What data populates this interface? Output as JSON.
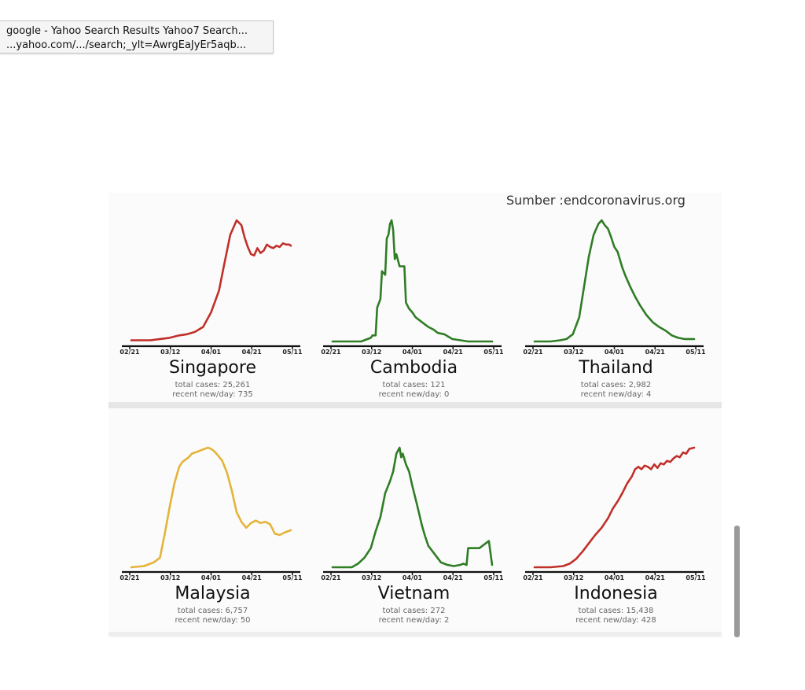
{
  "tooltip": {
    "title": "google - Yahoo Search Results Yahoo7 Search...",
    "url": "...yahoo.com/.../search;_ylt=AwrgEaJyEr5aqb..."
  },
  "source_label": "Sumber :endcoronavirus.org",
  "colors": {
    "red": "#c0302a",
    "green": "#2f7d25",
    "yellow": "#e4b43a"
  },
  "chart_data": [
    {
      "type": "line",
      "name": "Singapore",
      "color": "red",
      "xticks": [
        "02/21",
        "03/12",
        "04/01",
        "04/21",
        "05/11"
      ],
      "stats": [
        "total cases: 25,261",
        "recent new/day: 735"
      ],
      "x": [
        0,
        0.06,
        0.12,
        0.18,
        0.24,
        0.3,
        0.35,
        0.4,
        0.45,
        0.5,
        0.55,
        0.58,
        0.62,
        0.66,
        0.69,
        0.71,
        0.73,
        0.75,
        0.77,
        0.79,
        0.81,
        0.83,
        0.85,
        0.87,
        0.89,
        0.91,
        0.93,
        0.95,
        0.97,
        0.99,
        1.0
      ],
      "y": [
        0.01,
        0.01,
        0.01,
        0.02,
        0.03,
        0.05,
        0.06,
        0.08,
        0.12,
        0.24,
        0.42,
        0.62,
        0.88,
        1.0,
        0.96,
        0.86,
        0.78,
        0.72,
        0.71,
        0.77,
        0.73,
        0.75,
        0.8,
        0.78,
        0.77,
        0.79,
        0.78,
        0.81,
        0.8,
        0.8,
        0.79
      ],
      "ylim": [
        0,
        1
      ]
    },
    {
      "type": "line",
      "name": "Cambodia",
      "color": "green",
      "xticks": [
        "02/21",
        "03/12",
        "04/01",
        "04/21",
        "05/11"
      ],
      "stats": [
        "total cases: 121",
        "recent new/day: 0"
      ],
      "x": [
        0,
        0.1,
        0.18,
        0.24,
        0.25,
        0.27,
        0.28,
        0.3,
        0.31,
        0.33,
        0.34,
        0.35,
        0.36,
        0.37,
        0.38,
        0.39,
        0.4,
        0.42,
        0.43,
        0.45,
        0.46,
        0.48,
        0.5,
        0.52,
        0.55,
        0.58,
        0.6,
        0.63,
        0.66,
        0.7,
        0.75,
        0.85,
        1.0
      ],
      "y": [
        0,
        0,
        0,
        0.03,
        0.05,
        0.05,
        0.28,
        0.35,
        0.58,
        0.55,
        0.85,
        0.88,
        0.97,
        1.0,
        0.92,
        0.68,
        0.72,
        0.62,
        0.62,
        0.62,
        0.32,
        0.27,
        0.24,
        0.2,
        0.17,
        0.14,
        0.12,
        0.1,
        0.07,
        0.06,
        0.02,
        0,
        0
      ],
      "ylim": [
        0,
        1
      ]
    },
    {
      "type": "line",
      "name": "Thailand",
      "color": "green",
      "xticks": [
        "02/21",
        "03/12",
        "04/01",
        "04/21",
        "05/11"
      ],
      "stats": [
        "total cases: 2,982",
        "recent new/day: 4"
      ],
      "x": [
        0,
        0.1,
        0.16,
        0.2,
        0.24,
        0.28,
        0.31,
        0.34,
        0.37,
        0.4,
        0.42,
        0.44,
        0.46,
        0.48,
        0.5,
        0.52,
        0.55,
        0.57,
        0.6,
        0.63,
        0.66,
        0.7,
        0.74,
        0.78,
        0.82,
        0.86,
        0.9,
        0.94,
        0.97,
        1.0
      ],
      "y": [
        0,
        0,
        0.01,
        0.02,
        0.06,
        0.2,
        0.45,
        0.7,
        0.88,
        0.97,
        1.0,
        0.96,
        0.93,
        0.86,
        0.78,
        0.74,
        0.61,
        0.54,
        0.45,
        0.37,
        0.3,
        0.22,
        0.16,
        0.12,
        0.09,
        0.05,
        0.03,
        0.02,
        0.02,
        0.02
      ],
      "ylim": [
        0,
        1
      ]
    },
    {
      "type": "line",
      "name": "Malaysia",
      "color": "yellow",
      "xticks": [
        "02/21",
        "03/12",
        "04/01",
        "04/21",
        "05/11"
      ],
      "stats": [
        "total cases: 6,757",
        "recent new/day: 50"
      ],
      "x": [
        0,
        0.08,
        0.14,
        0.18,
        0.21,
        0.24,
        0.27,
        0.3,
        0.32,
        0.34,
        0.36,
        0.38,
        0.4,
        0.42,
        0.44,
        0.46,
        0.48,
        0.5,
        0.52,
        0.54,
        0.57,
        0.6,
        0.63,
        0.66,
        0.69,
        0.72,
        0.75,
        0.78,
        0.81,
        0.84,
        0.87,
        0.9,
        0.93,
        0.96,
        1.0
      ],
      "y": [
        0,
        0.01,
        0.04,
        0.08,
        0.28,
        0.5,
        0.7,
        0.84,
        0.88,
        0.9,
        0.92,
        0.95,
        0.96,
        0.97,
        0.98,
        0.99,
        1.0,
        0.99,
        0.97,
        0.94,
        0.89,
        0.79,
        0.64,
        0.46,
        0.38,
        0.33,
        0.37,
        0.39,
        0.37,
        0.38,
        0.36,
        0.28,
        0.27,
        0.29,
        0.31
      ],
      "ylim": [
        0,
        1
      ]
    },
    {
      "type": "line",
      "name": "Vietnam",
      "color": "green",
      "xticks": [
        "02/21",
        "03/12",
        "04/01",
        "04/21",
        "05/11"
      ],
      "stats": [
        "total cases: 272",
        "recent new/day: 2"
      ],
      "x": [
        0,
        0.12,
        0.16,
        0.2,
        0.24,
        0.27,
        0.3,
        0.33,
        0.36,
        0.38,
        0.4,
        0.42,
        0.43,
        0.44,
        0.46,
        0.48,
        0.5,
        0.53,
        0.56,
        0.58,
        0.6,
        0.64,
        0.68,
        0.72,
        0.76,
        0.8,
        0.82,
        0.84,
        0.85,
        0.88,
        0.92,
        0.96,
        0.98,
        1.0
      ],
      "y": [
        0,
        0,
        0.03,
        0.08,
        0.16,
        0.3,
        0.42,
        0.62,
        0.72,
        0.8,
        0.95,
        1.0,
        0.92,
        0.95,
        0.86,
        0.8,
        0.68,
        0.52,
        0.35,
        0.26,
        0.18,
        0.11,
        0.04,
        0.02,
        0.01,
        0.02,
        0.03,
        0.02,
        0.16,
        0.16,
        0.16,
        0.2,
        0.22,
        0.02
      ],
      "ylim": [
        0,
        1
      ]
    },
    {
      "type": "line",
      "name": "Indonesia",
      "color": "red",
      "xticks": [
        "02/21",
        "03/12",
        "04/01",
        "04/21",
        "05/11"
      ],
      "stats": [
        "total cases: 15,438",
        "recent new/day: 428"
      ],
      "x": [
        0,
        0.1,
        0.18,
        0.22,
        0.26,
        0.3,
        0.34,
        0.38,
        0.42,
        0.46,
        0.49,
        0.52,
        0.55,
        0.58,
        0.61,
        0.63,
        0.65,
        0.67,
        0.69,
        0.71,
        0.73,
        0.75,
        0.77,
        0.79,
        0.81,
        0.83,
        0.85,
        0.87,
        0.89,
        0.91,
        0.93,
        0.95,
        0.97,
        1.0
      ],
      "y": [
        0,
        0,
        0.01,
        0.03,
        0.07,
        0.13,
        0.2,
        0.27,
        0.33,
        0.41,
        0.49,
        0.55,
        0.62,
        0.7,
        0.76,
        0.82,
        0.84,
        0.82,
        0.85,
        0.84,
        0.82,
        0.86,
        0.83,
        0.87,
        0.86,
        0.89,
        0.88,
        0.91,
        0.93,
        0.92,
        0.96,
        0.95,
        0.99,
        1.0
      ],
      "ylim": [
        0,
        1
      ]
    }
  ]
}
